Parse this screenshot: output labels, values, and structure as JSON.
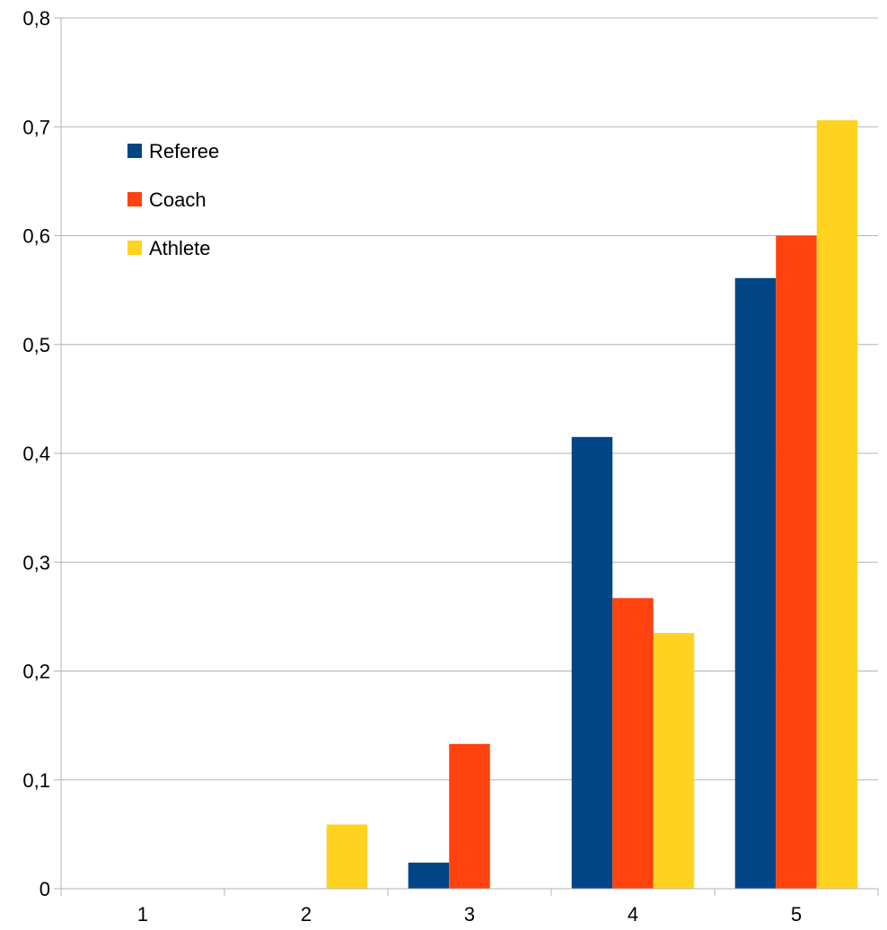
{
  "chart_data": {
    "type": "bar",
    "title": "",
    "xlabel": "",
    "ylabel": "",
    "categories": [
      "1",
      "2",
      "3",
      "4",
      "5"
    ],
    "series": [
      {
        "name": "Referee",
        "color": "#004586",
        "values": [
          0,
          0,
          0.024,
          0.415,
          0.561
        ]
      },
      {
        "name": "Coach",
        "color": "#ff420e",
        "values": [
          0,
          0,
          0.133,
          0.267,
          0.6
        ]
      },
      {
        "name": "Athlete",
        "color": "#ffd320",
        "values": [
          0,
          0.059,
          0,
          0.235,
          0.706
        ]
      }
    ],
    "ylim": [
      0,
      0.8
    ],
    "yticks": [
      "0",
      "0,1",
      "0,2",
      "0,3",
      "0,4",
      "0,5",
      "0,6",
      "0,7",
      "0,8"
    ],
    "grid": true,
    "legend_position": "top-left"
  }
}
